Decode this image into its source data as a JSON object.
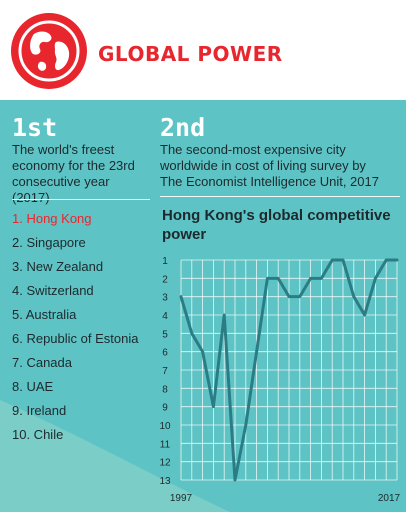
{
  "header": {
    "title": "GLOBAL POWER",
    "globe_icon": "globe-icon"
  },
  "first": {
    "rank": "1st",
    "description_lines": [
      "The world's freest",
      "economy for the 23rd",
      "consecutive year",
      "(2017)"
    ]
  },
  "second": {
    "rank": "2nd",
    "description_lines": [
      "The second-most expensive city",
      "worldwide in cost of living survey by",
      "The Economist Intelligence Unit, 2017"
    ]
  },
  "freest_economies": [
    "1. Hong Kong",
    "2. Singapore",
    "3. New Zealand",
    "4. Switzerland",
    "5. Australia",
    "6. Republic of Estonia",
    "7. Canada",
    "8. UAE",
    "9. Ireland",
    "10. Chile"
  ],
  "colors": {
    "accent": "#e8262e",
    "background": "#5ec3c4",
    "line": "#2b7d85"
  },
  "chart_data": {
    "type": "line",
    "title": "Hong Kong's global competitive power",
    "x": [
      1997,
      1998,
      1999,
      2000,
      2001,
      2002,
      2003,
      2004,
      2005,
      2006,
      2007,
      2008,
      2009,
      2010,
      2011,
      2012,
      2013,
      2014,
      2015,
      2016,
      2017
    ],
    "series": [
      {
        "values": [
          3,
          5,
          6,
          9,
          4,
          13,
          10,
          6,
          2,
          2,
          3,
          3,
          2,
          2,
          1,
          1,
          3,
          4,
          2,
          1,
          1
        ]
      }
    ],
    "y_ticks": [
      1,
      2,
      3,
      4,
      5,
      6,
      7,
      8,
      9,
      10,
      11,
      12,
      13
    ],
    "ylim": [
      1,
      13
    ],
    "y_inverted": true,
    "x_tick_labels": [
      "1997",
      "2017"
    ],
    "grid": true
  }
}
